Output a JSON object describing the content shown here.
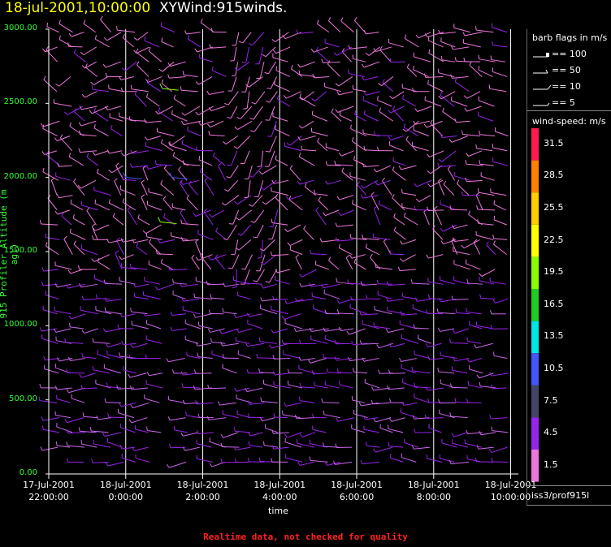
{
  "header": {
    "date": "18-jul-2001,10:00:00",
    "title": "XYWind:915winds."
  },
  "chart_data": {
    "type": "wind-barb",
    "ylabel": "915 Profiler Altitude (m agl)",
    "xlabel": "time",
    "ylim": [
      0,
      3000
    ],
    "yticks": [
      "0.00",
      "500.00",
      "1000.00",
      "1500.00",
      "2000.00",
      "2500.00",
      "3000.00"
    ],
    "xticks": [
      {
        "line1": "17-Jul-2001",
        "line2": "22:00:00"
      },
      {
        "line1": "18-Jul-2001",
        "line2": "0:00:00"
      },
      {
        "line1": "18-Jul-2001",
        "line2": "2:00:00"
      },
      {
        "line1": "18-Jul-2001",
        "line2": "4:00:00"
      },
      {
        "line1": "18-Jul-2001",
        "line2": "6:00:00"
      },
      {
        "line1": "18-Jul-2001",
        "line2": "8:00:00"
      },
      {
        "line1": "18-Jul-2001",
        "line2": "10:00:00"
      }
    ],
    "x_hours_range": [
      -2,
      10.2
    ],
    "grid_x": true,
    "legend_placement": "right"
  },
  "legend": {
    "flags_title": "barb flags in m/s",
    "flags": [
      "== 100",
      "== 50",
      "== 10",
      "== 5"
    ],
    "speed_title": "wind-speed: m/s",
    "colorbar": [
      {
        "label": "31.5",
        "color": "#ff1a50"
      },
      {
        "label": "28.5",
        "color": "#ff8000"
      },
      {
        "label": "25.5",
        "color": "#ffcc00"
      },
      {
        "label": "22.5",
        "color": "#ffff00"
      },
      {
        "label": "19.5",
        "color": "#88ff00"
      },
      {
        "label": "16.5",
        "color": "#22cc22"
      },
      {
        "label": "13.5",
        "color": "#00e5e5"
      },
      {
        "label": "10.5",
        "color": "#4455ff"
      },
      {
        "label": "7.5",
        "color": "#444466"
      },
      {
        "label": "4.5",
        "color": "#9922ee"
      },
      {
        "label": "1.5",
        "color": "#ee77dd"
      }
    ],
    "station": "iss3/prof915l"
  },
  "footer": "Realtime data, not checked for quality"
}
